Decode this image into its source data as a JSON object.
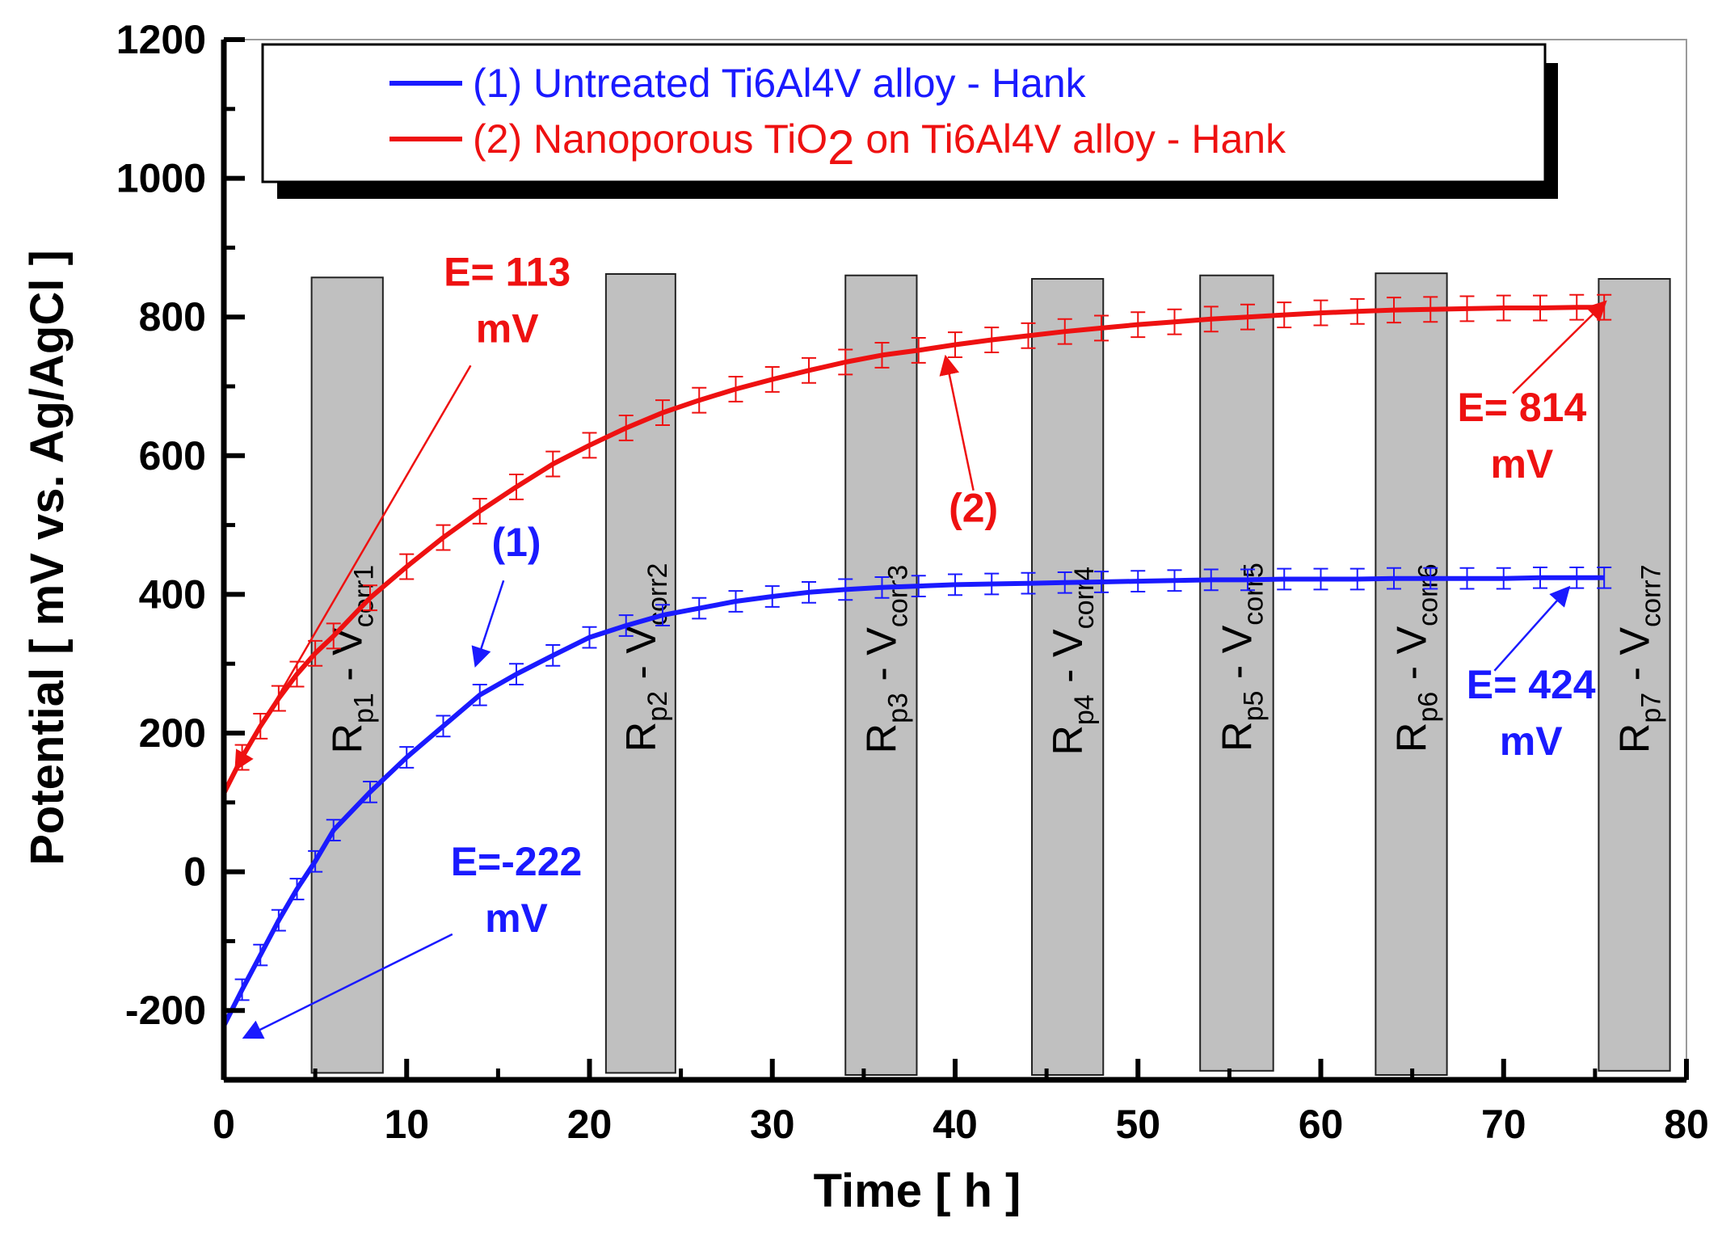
{
  "chart_data": {
    "type": "line",
    "xlabel": "Time [ h ]",
    "ylabel": "Potential [ mV vs. Ag/AgCl ]",
    "xlim": [
      0,
      80
    ],
    "ylim": [
      -300,
      1200
    ],
    "x_ticks": [
      0,
      10,
      20,
      30,
      40,
      50,
      60,
      70,
      80
    ],
    "y_ticks": [
      -200,
      0,
      200,
      400,
      600,
      800,
      1000,
      1200
    ],
    "x_tick_labels": [
      "0",
      "10",
      "20",
      "30",
      "40",
      "50",
      "60",
      "70",
      "80"
    ],
    "y_tick_labels": [
      "-200",
      "0",
      "200",
      "400",
      "600",
      "800",
      "1000",
      "1200"
    ],
    "series": [
      {
        "name": "(1) Untreated Ti6Al4V alloy  - Hank",
        "color": "#1a1aff",
        "x": [
          0,
          1,
          2,
          3,
          4,
          5,
          6,
          8,
          10,
          12,
          14,
          16,
          18,
          20,
          22,
          24,
          26,
          28,
          30,
          32,
          34,
          36,
          38,
          40,
          42,
          44,
          46,
          48,
          50,
          52,
          54,
          56,
          58,
          60,
          62,
          64,
          66,
          68,
          70,
          72,
          74,
          75.5
        ],
        "y": [
          -222,
          -170,
          -120,
          -70,
          -25,
          15,
          60,
          115,
          165,
          210,
          255,
          285,
          312,
          338,
          355,
          370,
          380,
          390,
          397,
          403,
          407,
          410,
          412,
          414,
          415,
          416,
          417,
          418,
          419,
          420,
          421,
          421,
          422,
          422,
          422,
          423,
          423,
          423,
          423,
          424,
          424,
          424
        ],
        "error": 15
      },
      {
        "name": "(2) Nanoporous TiO2 on Ti6Al4V alloy - Hank",
        "color": "#ee1111",
        "x": [
          0,
          1,
          2,
          3,
          4,
          5,
          6,
          8,
          10,
          12,
          14,
          16,
          18,
          20,
          22,
          24,
          26,
          28,
          30,
          32,
          34,
          36,
          38,
          40,
          42,
          44,
          46,
          48,
          50,
          52,
          54,
          56,
          58,
          60,
          62,
          64,
          66,
          68,
          70,
          72,
          74,
          75.5
        ],
        "y": [
          113,
          165,
          210,
          250,
          285,
          315,
          340,
          395,
          440,
          482,
          520,
          555,
          588,
          615,
          640,
          662,
          680,
          696,
          710,
          723,
          735,
          745,
          752,
          760,
          767,
          773,
          779,
          784,
          789,
          793,
          797,
          800,
          803,
          806,
          808,
          810,
          811,
          812,
          813,
          813,
          814,
          814
        ],
        "error": 18
      }
    ],
    "legend": {
      "position": "top",
      "entries": [
        {
          "prefix": "(1) Untreated Ti6Al4V alloy  - Hank",
          "color": "#1a1aff"
        },
        {
          "prefix": "(2) Nanoporous TiO",
          "sub": "2",
          "suffix": " on Ti6Al4V alloy - Hank",
          "color": "#ee1111"
        }
      ]
    },
    "bars": [
      {
        "R": "R",
        "Rsub": "p1",
        "mid": " - V",
        "Vsub": "corr1",
        "x_start": 4.8,
        "x_end": 8.7,
        "top": 857,
        "bottom": -290
      },
      {
        "R": "R",
        "Rsub": "p2",
        "mid": " - V",
        "Vsub": "corr2",
        "x_start": 20.9,
        "x_end": 24.7,
        "top": 862,
        "bottom": -290
      },
      {
        "R": "R",
        "Rsub": "p3",
        "mid": " - V",
        "Vsub": "corr3",
        "x_start": 34.0,
        "x_end": 37.9,
        "top": 860,
        "bottom": -293
      },
      {
        "R": "R",
        "Rsub": "p4",
        "mid": " - V",
        "Vsub": "corr4",
        "x_start": 44.2,
        "x_end": 48.1,
        "top": 855,
        "bottom": -293
      },
      {
        "R": "R",
        "Rsub": "p5",
        "mid": " - V",
        "Vsub": "corr5",
        "x_start": 53.4,
        "x_end": 57.4,
        "top": 860,
        "bottom": -287
      },
      {
        "R": "R",
        "Rsub": "p6",
        "mid": " - V",
        "Vsub": "corr6",
        "x_start": 63.0,
        "x_end": 66.9,
        "top": 863,
        "bottom": -293
      },
      {
        "R": "R",
        "Rsub": "p7",
        "mid": " - V",
        "Vsub": "corr7",
        "x_start": 75.2,
        "x_end": 79.1,
        "top": 855,
        "bottom": -287
      }
    ],
    "annotations": [
      {
        "lines": [
          "E= 113",
          "mV"
        ],
        "color": "#ee1111",
        "text_x": 15.5,
        "text_y": 845,
        "target_x": 0.7,
        "target_y": 150,
        "arrow_from_x": 13.5,
        "arrow_from_y": 730
      },
      {
        "lines": [
          "E=-222",
          "mV"
        ],
        "color": "#1a1aff",
        "text_x": 16,
        "text_y": -5,
        "target_x": 1.2,
        "target_y": -238,
        "arrow_from_x": 12.5,
        "arrow_from_y": -90
      },
      {
        "lines": [
          "(1)"
        ],
        "color": "#1a1aff",
        "text_x": 16,
        "text_y": 455,
        "target_x": 13.8,
        "target_y": 300,
        "arrow_from_x": 15.3,
        "arrow_from_y": 420
      },
      {
        "lines": [
          "(2)"
        ],
        "color": "#ee1111",
        "text_x": 41,
        "text_y": 505,
        "target_x": 39.5,
        "target_y": 740,
        "arrow_from_x": 41,
        "arrow_from_y": 550
      },
      {
        "lines": [
          "E= 814",
          "mV"
        ],
        "color": "#ee1111",
        "text_x": 71,
        "text_y": 650,
        "target_x": 75.5,
        "target_y": 820,
        "arrow_from_x": 70.5,
        "arrow_from_y": 690
      },
      {
        "lines": [
          "E= 424",
          "mV"
        ],
        "color": "#1a1aff",
        "text_x": 71.5,
        "text_y": 250,
        "target_x": 73.5,
        "target_y": 408,
        "arrow_from_x": 69.5,
        "arrow_from_y": 290
      }
    ]
  }
}
